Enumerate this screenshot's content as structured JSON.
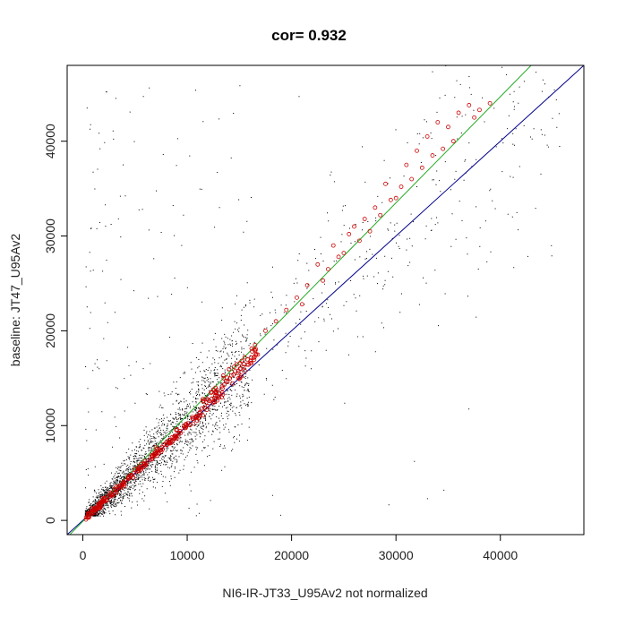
{
  "chart_data": {
    "type": "scatter",
    "title": "cor= 0.932",
    "xlabel": "NI6-IR-JT33_U95Av2 not normalized",
    "ylabel": "baseline: JT47_U95Av2",
    "xlim": [
      -1500,
      48000
    ],
    "ylim": [
      -1500,
      48000
    ],
    "x_ticks": [
      0,
      10000,
      20000,
      30000,
      40000
    ],
    "y_ticks": [
      0,
      10000,
      20000,
      30000,
      40000
    ],
    "x_tick_labels": [
      "0",
      "10000",
      "20000",
      "30000",
      "40000"
    ],
    "y_tick_labels": [
      "0",
      "10000",
      "20000",
      "30000",
      "40000"
    ],
    "grid": false,
    "colors": {
      "points": "#000000",
      "highlight": "#cc0000",
      "identity_line": "#00008b",
      "fit_line": "#22aa22"
    },
    "reference_lines": [
      {
        "kind": "identity",
        "slope": 1.0,
        "intercept": 0,
        "color": "#00008b"
      },
      {
        "kind": "fit",
        "slope": 1.12,
        "intercept": -100,
        "color": "#22aa22"
      }
    ],
    "highlighted_points": [
      [
        500,
        600
      ],
      [
        1500,
        1700
      ],
      [
        3000,
        3300
      ],
      [
        5000,
        5400
      ],
      [
        7000,
        7700
      ],
      [
        9000,
        9600
      ],
      [
        10500,
        10900
      ],
      [
        11500,
        12800
      ],
      [
        12500,
        13800
      ],
      [
        13500,
        15000
      ],
      [
        14500,
        16200
      ],
      [
        15500,
        17200
      ],
      [
        16500,
        18500
      ],
      [
        17500,
        20000
      ],
      [
        18500,
        21000
      ],
      [
        19500,
        22200
      ],
      [
        20500,
        23500
      ],
      [
        21500,
        24800
      ],
      [
        22500,
        27000
      ],
      [
        23500,
        26500
      ],
      [
        24000,
        29000
      ],
      [
        25000,
        28200
      ],
      [
        26000,
        31000
      ],
      [
        27000,
        31800
      ],
      [
        28000,
        33000
      ],
      [
        29000,
        35500
      ],
      [
        30000,
        34000
      ],
      [
        31000,
        37500
      ],
      [
        32000,
        39000
      ],
      [
        33000,
        40500
      ],
      [
        34000,
        42000
      ],
      [
        35000,
        41500
      ],
      [
        36000,
        43000
      ],
      [
        37000,
        43800
      ],
      [
        38000,
        43300
      ],
      [
        39000,
        44000
      ],
      [
        21000,
        22800
      ],
      [
        23000,
        25300
      ],
      [
        25500,
        30200
      ],
      [
        27500,
        30500
      ],
      [
        29500,
        33800
      ],
      [
        31500,
        36000
      ],
      [
        33500,
        38500
      ],
      [
        35500,
        40000
      ],
      [
        37500,
        42500
      ],
      [
        24500,
        27800
      ],
      [
        26500,
        29500
      ],
      [
        28500,
        32200
      ],
      [
        30500,
        35200
      ],
      [
        32500,
        37200
      ],
      [
        34500,
        39200
      ]
    ],
    "background_cloud": {
      "description_free_params": true,
      "point_count_approx": 9000,
      "dense_range_x": [
        0,
        16000
      ],
      "sparse_range_x": [
        0,
        46000
      ]
    }
  }
}
